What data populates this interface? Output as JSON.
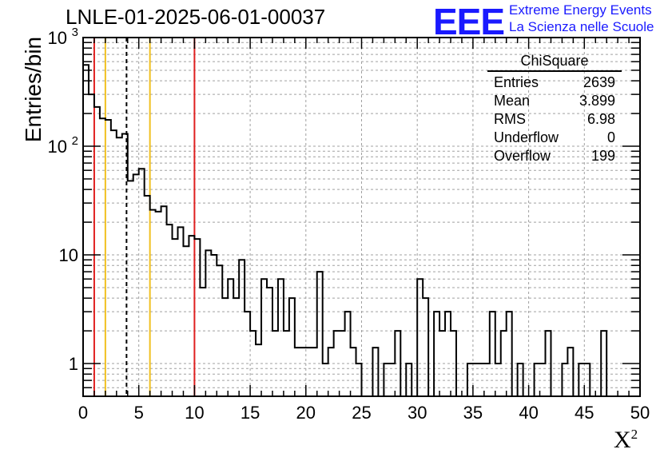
{
  "header": {
    "title": "LNLE-01-2025-06-01-00037",
    "logo_text": "EEE",
    "brand_line1": "Extreme Energy Events",
    "brand_line2": "La Scienza nelle Scuole"
  },
  "stats_box": {
    "title": "ChiSquare",
    "rows": [
      {
        "label": "Entries",
        "value": "2639"
      },
      {
        "label": "Mean",
        "value": "3.899"
      },
      {
        "label": "RMS",
        "value": "6.98"
      },
      {
        "label": "Underflow",
        "value": "0"
      },
      {
        "label": "Overflow",
        "value": "199"
      }
    ]
  },
  "colors": {
    "red_line": "#e02020",
    "yellow_line": "#f0c020",
    "dashed_line": "#000000",
    "histogram": "#000000",
    "grid": "#a0a0a0",
    "brand": "#1a1aff"
  },
  "chart_data": {
    "type": "histogram",
    "title": "LNLE-01-2025-06-01-00037",
    "xlabel": "X",
    "xlabel_superscript": "2",
    "ylabel": "Entries/bin",
    "xlim": [
      0,
      50
    ],
    "ylim": [
      0.5,
      1000
    ],
    "y_scale": "log",
    "grid": true,
    "bin_width": 0.5,
    "x_ticks": [
      "0",
      "5",
      "10",
      "15",
      "20",
      "25",
      "30",
      "35",
      "40",
      "45",
      "50"
    ],
    "y_ticks": [
      {
        "value": 1,
        "label": "1"
      },
      {
        "value": 10,
        "label": "10"
      },
      {
        "value": 100,
        "label": "10",
        "exp": "2"
      },
      {
        "value": 1000,
        "label": "10",
        "exp": "3"
      }
    ],
    "values": [
      560,
      300,
      230,
      180,
      175,
      140,
      120,
      130,
      48,
      55,
      62,
      35,
      26,
      25,
      28,
      19,
      14,
      18,
      12,
      15,
      14,
      5,
      11,
      10,
      8,
      4,
      6,
      4,
      9,
      3,
      2,
      1.5,
      6,
      5,
      2,
      6,
      2,
      4,
      1.4,
      1.4,
      1.4,
      1.4,
      7,
      1,
      1.4,
      2,
      2,
      3,
      1.4,
      1,
      0,
      0,
      1.4,
      0,
      1,
      1,
      2,
      0,
      1,
      0,
      6,
      4,
      0,
      3,
      2,
      3,
      2,
      0,
      0,
      1,
      1,
      1,
      1,
      3,
      1,
      2,
      3,
      0,
      1,
      0,
      0,
      1,
      1,
      2,
      0,
      0,
      1,
      1.4,
      0,
      1,
      1,
      0,
      0,
      2,
      0,
      0,
      0,
      0,
      0,
      0
    ],
    "vertical_lines": [
      {
        "x": 1,
        "style": "red"
      },
      {
        "x": 2,
        "style": "yellow"
      },
      {
        "x": 3.899,
        "style": "dashed"
      },
      {
        "x": 6,
        "style": "yellow"
      },
      {
        "x": 10,
        "style": "red"
      }
    ]
  }
}
